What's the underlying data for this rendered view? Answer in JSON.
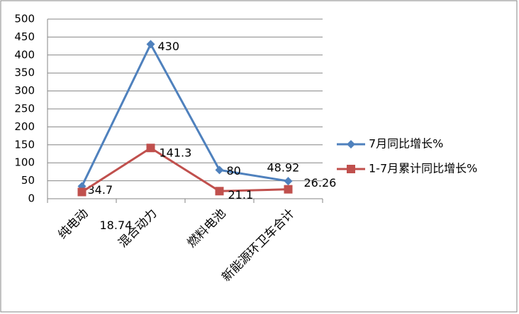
{
  "chart_data": {
    "type": "line",
    "categories": [
      "纯电动",
      "混合动力",
      "燃料电池",
      "新能源环卫车合计"
    ],
    "series": [
      {
        "name": "7月同比增长%",
        "color": "#4f81bd",
        "values": [
          34.7,
          430,
          80,
          48.92
        ]
      },
      {
        "name": "1-7月累计同比增长%",
        "color": "#c0504d",
        "values": [
          18.74,
          141.3,
          21.1,
          26.26
        ]
      }
    ],
    "ylim": [
      0,
      500
    ],
    "yticks": [
      0,
      50,
      100,
      150,
      200,
      250,
      300,
      350,
      400,
      450,
      500
    ],
    "grid": true,
    "legend": "right"
  }
}
